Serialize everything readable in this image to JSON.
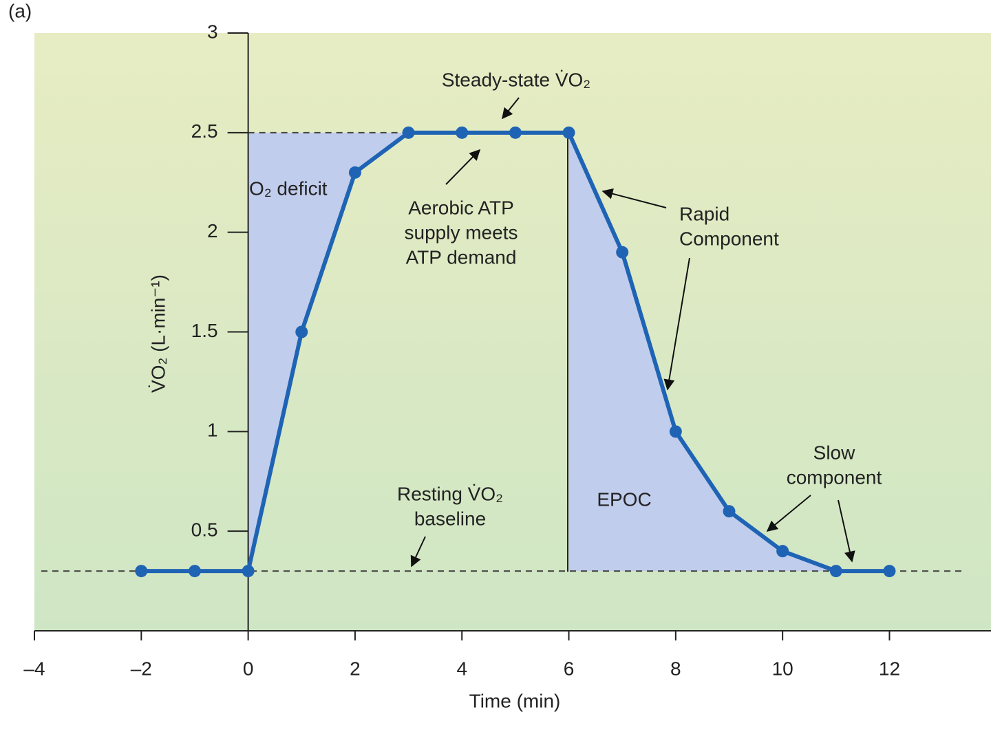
{
  "chart_data": {
    "type": "line",
    "panel_label": "(a)",
    "x_label": "Time (min)",
    "y_label": "V̇O₂ (L·min⁻¹)",
    "x": [
      -2,
      -1,
      0,
      1,
      2,
      3,
      4,
      5,
      6,
      7,
      8,
      9,
      10,
      11,
      12
    ],
    "series": [
      {
        "color": "#1f64b4",
        "values": [
          0.3,
          0.3,
          0.3,
          1.5,
          2.3,
          2.5,
          2.5,
          2.5,
          2.5,
          1.9,
          1.0,
          0.6,
          0.4,
          0.3,
          0.3
        ]
      }
    ],
    "reference_lines": [
      2.5,
      0.3
    ],
    "xlim": [
      -4,
      13.9
    ],
    "xticks": [
      {
        "value": -4,
        "label": "–4"
      },
      {
        "value": -2,
        "label": "–2"
      },
      0,
      2,
      4,
      6,
      8,
      10,
      12
    ],
    "ylim": [
      0,
      3
    ],
    "yticks": [
      0.5,
      1,
      1.5,
      2,
      2.5,
      3
    ],
    "annotations": {
      "steady_state": [
        "Steady-state V̇O₂"
      ],
      "o2_deficit": [
        "O₂ deficit"
      ],
      "aerobic": [
        "Aerobic ATP",
        "supply meets",
        "ATP demand"
      ],
      "rapid": [
        "Rapid",
        "Component"
      ],
      "resting": [
        "Resting V̇O₂",
        "baseline"
      ],
      "epoc": [
        "EPOC"
      ],
      "slow": [
        "Slow",
        "component"
      ]
    }
  }
}
